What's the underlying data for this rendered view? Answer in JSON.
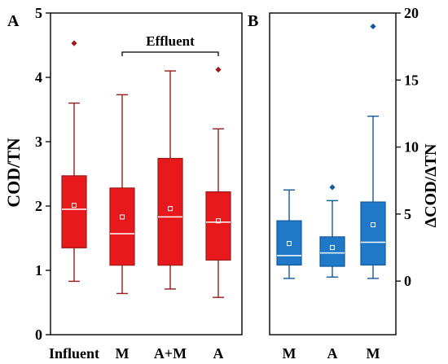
{
  "chart_data": [
    {
      "panel_label": "A",
      "type": "boxplot",
      "ylabel": "COD/TN",
      "ylim": [
        0,
        5
      ],
      "yticks": [
        0,
        1,
        2,
        3,
        4,
        5
      ],
      "categories": [
        "Influent",
        "M",
        "A+M",
        "A"
      ],
      "bracket_label": "Effluent",
      "bracket_spans": [
        "M",
        "A"
      ],
      "color": "#e8191c",
      "stroke": "#9b1b1b",
      "boxes": [
        {
          "min": 0.83,
          "q1": 1.35,
          "median": 1.95,
          "mean": 2.01,
          "q3": 2.47,
          "max": 3.6,
          "outliers": [
            4.53
          ]
        },
        {
          "min": 0.64,
          "q1": 1.08,
          "median": 1.57,
          "mean": 1.83,
          "q3": 2.28,
          "max": 3.73,
          "outliers": []
        },
        {
          "min": 0.71,
          "q1": 1.08,
          "median": 1.83,
          "mean": 1.96,
          "q3": 2.74,
          "max": 4.1,
          "outliers": []
        },
        {
          "min": 0.58,
          "q1": 1.16,
          "median": 1.75,
          "mean": 1.77,
          "q3": 2.22,
          "max": 3.2,
          "outliers": [
            4.12
          ]
        }
      ]
    },
    {
      "panel_label": "B",
      "type": "boxplot",
      "ylabel": "ΔCOD/ΔTN",
      "ylim": [
        -4,
        20
      ],
      "yticks": [
        0,
        5,
        10,
        15,
        20
      ],
      "categories": [
        "M",
        "A",
        "M"
      ],
      "color": "#1f78c8",
      "stroke": "#125a9c",
      "boxes": [
        {
          "min": 0.2,
          "q1": 1.2,
          "median": 1.9,
          "mean": 2.8,
          "q3": 4.5,
          "max": 6.8,
          "outliers": []
        },
        {
          "min": 0.3,
          "q1": 1.1,
          "median": 2.1,
          "mean": 2.5,
          "q3": 3.3,
          "max": 6.0,
          "outliers": [
            7.0
          ]
        },
        {
          "min": 0.2,
          "q1": 1.2,
          "median": 2.9,
          "mean": 4.2,
          "q3": 5.9,
          "max": 12.3,
          "outliers": [
            19.0
          ]
        }
      ]
    }
  ]
}
